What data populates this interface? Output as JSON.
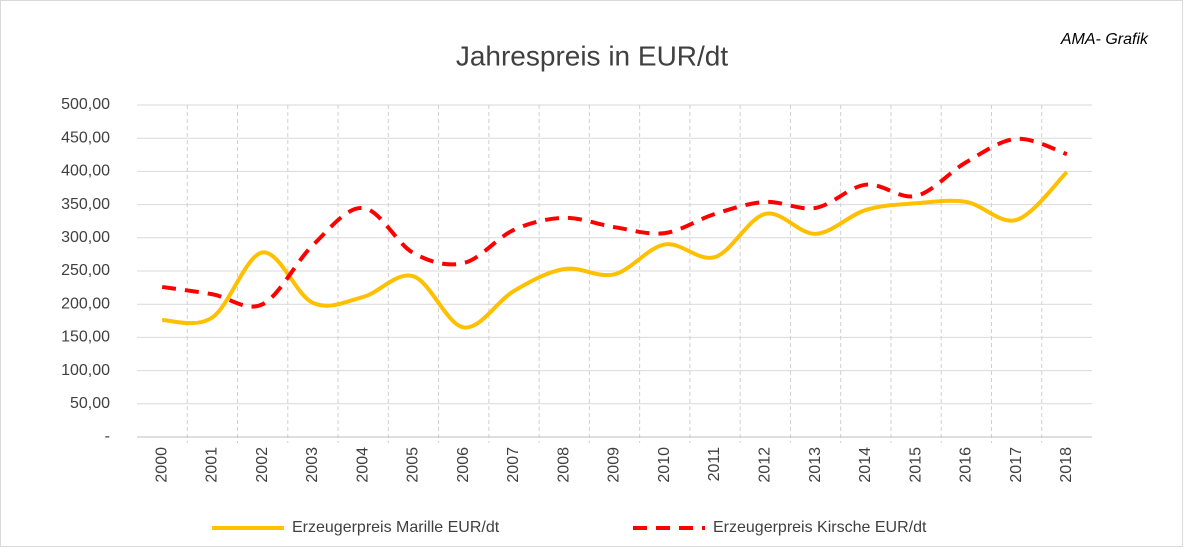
{
  "chart_data": {
    "type": "line",
    "title": "Jahrespreis in EUR/dt",
    "annotation": "AMA- Grafik",
    "categories": [
      "2000",
      "2001",
      "2002",
      "2003",
      "2004",
      "2005",
      "2006",
      "2007",
      "2008",
      "2009",
      "2010",
      "2011",
      "2012",
      "2013",
      "2014",
      "2015",
      "2016",
      "2017",
      "2018"
    ],
    "series": [
      {
        "name": "Erzeugerpreis Marille EUR/dt",
        "color": "#FFC000",
        "dashed": false,
        "values": [
          176,
          180,
          278,
          202,
          211,
          242,
          165,
          220,
          253,
          245,
          290,
          271,
          336,
          306,
          342,
          352,
          354,
          327,
          399
        ]
      },
      {
        "name": "Erzeugerpreis Kirsche EUR/dt",
        "color": "#FF0000",
        "dashed": true,
        "values": [
          226,
          215,
          200,
          289,
          345,
          277,
          262,
          312,
          330,
          316,
          307,
          336,
          354,
          345,
          380,
          363,
          414,
          449,
          426
        ]
      }
    ],
    "ylim": [
      0,
      500
    ],
    "yticks": [
      {
        "value": 0,
        "label": "-"
      },
      {
        "value": 50,
        "label": "50,00"
      },
      {
        "value": 100,
        "label": "100,00"
      },
      {
        "value": 150,
        "label": "150,00"
      },
      {
        "value": 200,
        "label": "200,00"
      },
      {
        "value": 250,
        "label": "250,00"
      },
      {
        "value": 300,
        "label": "300,00"
      },
      {
        "value": 350,
        "label": "350,00"
      },
      {
        "value": 400,
        "label": "400,00"
      },
      {
        "value": 450,
        "label": "450,00"
      },
      {
        "value": 500,
        "label": "500,00"
      }
    ],
    "grid": true,
    "smooth": true,
    "legend": "bottom"
  }
}
